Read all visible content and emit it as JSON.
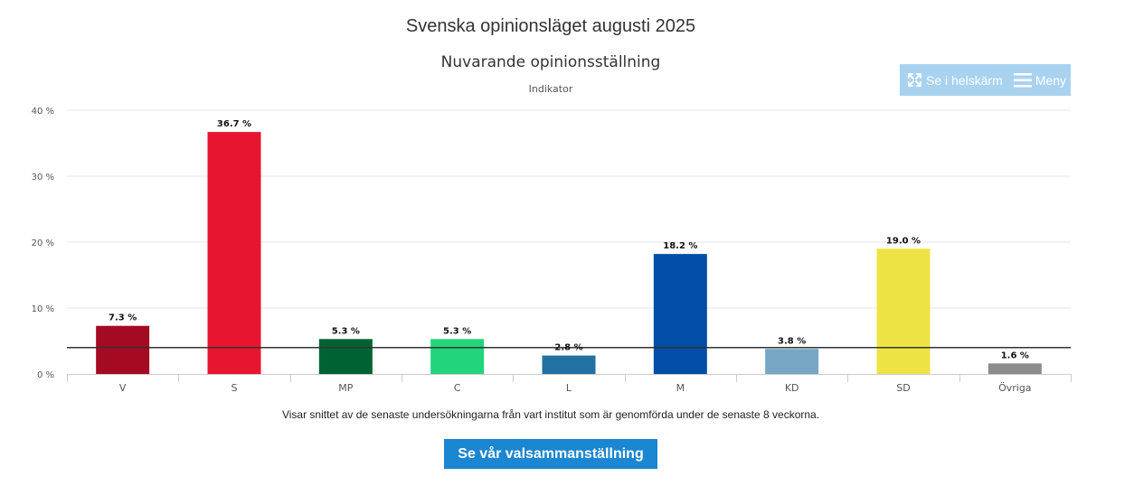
{
  "page": {
    "title": "Svenska opinionsläget augusti 2025",
    "footnote": "Visar snittet av de senaste undersökningarna från vart institut som är genomförda under de senaste 8 veckorna.",
    "cta_label": "Se vår valsammanställning"
  },
  "toolbar": {
    "fullscreen_label": "Se i helskärm",
    "fullscreen_icon": "expand-arrows-icon",
    "menu_label": "Meny",
    "menu_icon": "hamburger-icon",
    "background": "#a8d2f0"
  },
  "chart_data": {
    "type": "bar",
    "title": "Nuvarande opinionsställning",
    "subtitle": "Indikator",
    "categories": [
      "V",
      "S",
      "MP",
      "C",
      "L",
      "M",
      "KD",
      "SD",
      "Övriga"
    ],
    "values": [
      7.3,
      36.7,
      5.3,
      5.3,
      2.8,
      18.2,
      3.8,
      19.0,
      1.6
    ],
    "data_labels": [
      "7.3 %",
      "36.7 %",
      "5.3 %",
      "5.3 %",
      "2.8 %",
      "18.2 %",
      "3.8 %",
      "19.0 %",
      "1.6 %"
    ],
    "colors": [
      "#a50a23",
      "#e81530",
      "#006232",
      "#22d47b",
      "#2271a3",
      "#004ea8",
      "#77a6c6",
      "#ede345",
      "#8c8c8c"
    ],
    "ylim": [
      0,
      40
    ],
    "yticks": [
      0,
      10,
      20,
      30,
      40
    ],
    "ytick_labels": [
      "0 %",
      "10 %",
      "20 %",
      "30 %",
      "40 %"
    ],
    "reference_line": 4,
    "reference_color": "#333333",
    "grid": true,
    "legend": "none"
  }
}
